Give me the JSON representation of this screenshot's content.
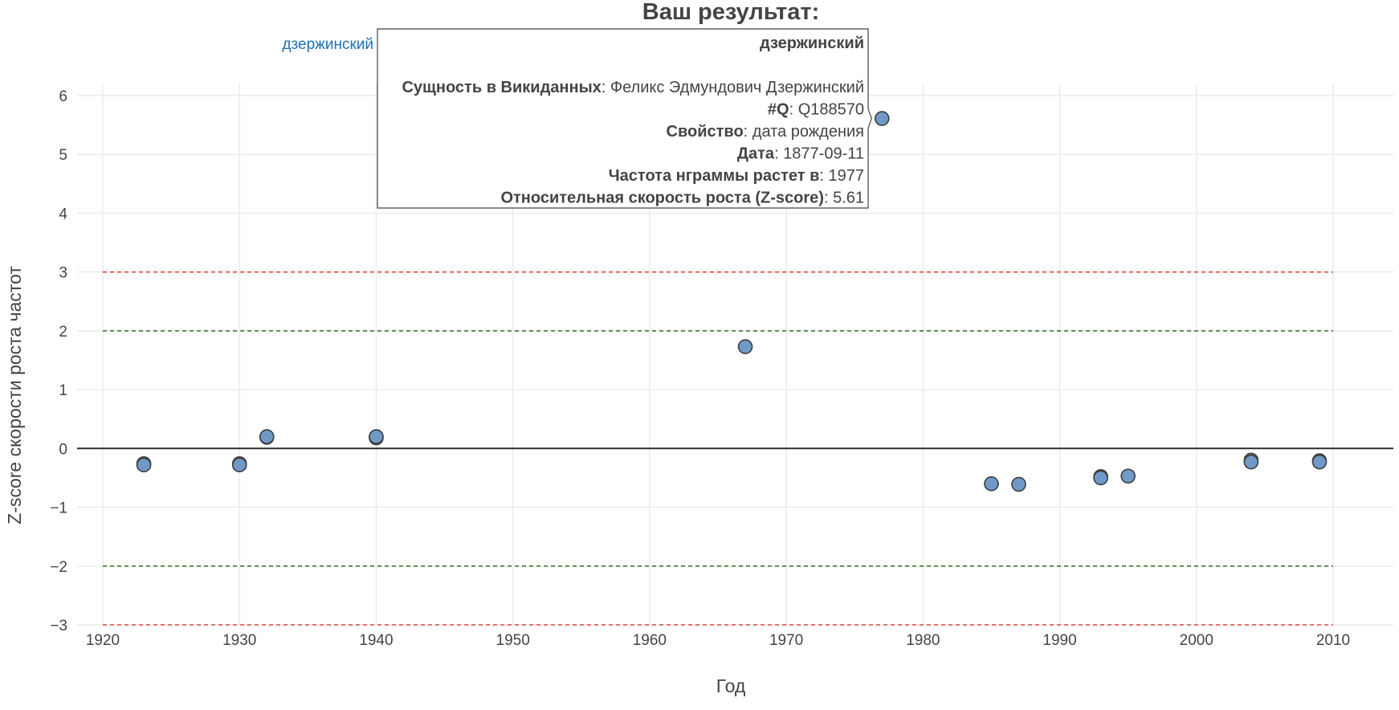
{
  "chart_data": {
    "type": "scatter",
    "title": "Ваш результат:",
    "xlabel": "Год",
    "ylabel": "Z-score скорости роста частот",
    "xlim": [
      1918,
      2014
    ],
    "ylim": [
      -3,
      6.3
    ],
    "x_ticks": [
      1920,
      1930,
      1940,
      1950,
      1960,
      1970,
      1980,
      1990,
      2000,
      2010
    ],
    "y_ticks": [
      -3,
      -2,
      -1,
      0,
      1,
      2,
      3,
      4,
      5,
      6
    ],
    "y_tick_labels": [
      "−3",
      "−2",
      "−1",
      "0",
      "1",
      "2",
      "3",
      "4",
      "5",
      "6"
    ],
    "grid": true,
    "legend": {
      "placement": "top-left",
      "entries": [
        "дзержинский"
      ]
    },
    "series": [
      {
        "name": "дзержинский",
        "color": "#6f9ac7",
        "points": [
          {
            "x": 1923,
            "y": -0.26
          },
          {
            "x": 1923,
            "y": -0.28
          },
          {
            "x": 1930,
            "y": -0.26
          },
          {
            "x": 1930,
            "y": -0.28
          },
          {
            "x": 1932,
            "y": 0.19
          },
          {
            "x": 1932,
            "y": 0.2
          },
          {
            "x": 1940,
            "y": 0.18
          },
          {
            "x": 1940,
            "y": 0.2
          },
          {
            "x": 1967,
            "y": 1.73
          },
          {
            "x": 1977,
            "y": 5.61
          },
          {
            "x": 1985,
            "y": -0.6
          },
          {
            "x": 1987,
            "y": -0.61
          },
          {
            "x": 1993,
            "y": -0.48
          },
          {
            "x": 1993,
            "y": -0.5
          },
          {
            "x": 1995,
            "y": -0.47
          },
          {
            "x": 2004,
            "y": -0.2
          },
          {
            "x": 2004,
            "y": -0.23
          },
          {
            "x": 2009,
            "y": -0.21
          },
          {
            "x": 2009,
            "y": -0.23
          }
        ]
      }
    ],
    "reference_lines": [
      {
        "y": 3,
        "color": "#e0443e",
        "style": "dashed"
      },
      {
        "y": 2,
        "color": "#3a7d2c",
        "style": "dashed"
      },
      {
        "y": 0,
        "color": "#222222",
        "style": "solid"
      },
      {
        "y": -2,
        "color": "#3a7d2c",
        "style": "dashed"
      },
      {
        "y": -3,
        "color": "#e0443e",
        "style": "dashed"
      }
    ],
    "tooltip": {
      "point": {
        "x": 1977,
        "y": 5.61
      },
      "title": "дзержинский",
      "rows": [
        {
          "label": "Сущность в Викиданных",
          "value": "Феликс Эдмундович Дзержинский"
        },
        {
          "label": "#Q",
          "value": "Q188570"
        },
        {
          "label": "Свойство",
          "value": "дата рождения"
        },
        {
          "label": "Дата",
          "value": "1877-09-11"
        },
        {
          "label": "Частота нграммы растет в",
          "value": "1977"
        },
        {
          "label": "Относительная скорость роста (Z-score)",
          "value": "5.61"
        }
      ]
    }
  }
}
